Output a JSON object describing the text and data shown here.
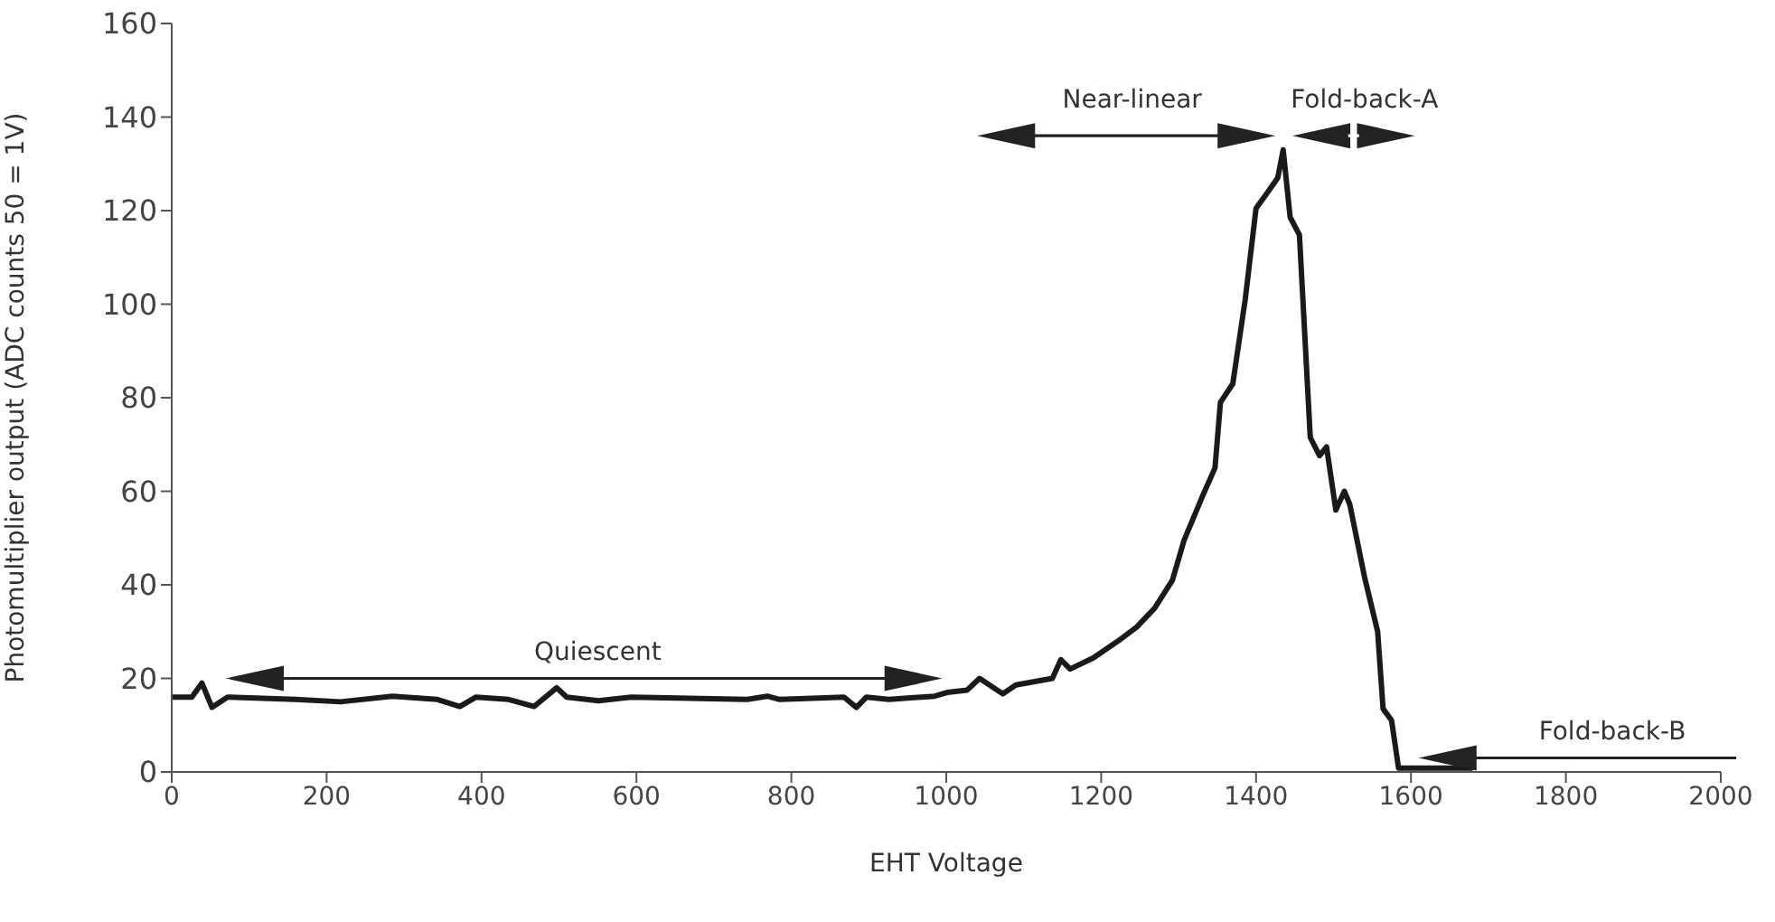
{
  "chart_data": {
    "type": "line",
    "xlabel": "EHT Voltage",
    "ylabel": "Photomultiplier output (ADC counts 50 = 1V)",
    "xlim": [
      0,
      2000
    ],
    "xticks": [
      0,
      200,
      400,
      600,
      800,
      1000,
      1200,
      1400,
      1600,
      1800,
      2000
    ],
    "ylim": [
      0,
      160
    ],
    "yticks": [
      0,
      20,
      40,
      60,
      80,
      100,
      120,
      140,
      160
    ],
    "grid": false,
    "legend": false,
    "marker": "none",
    "line_style": "solid",
    "series": [
      {
        "color": "#1a1a1a",
        "x": [
          1,
          26,
          39,
          52,
          72,
          160,
          218,
          285,
          343,
          372,
          393,
          435,
          468,
          497,
          510,
          551,
          593,
          743,
          769,
          785,
          868,
          884,
          897,
          926,
          985,
          1001,
          1027,
          1043,
          1073,
          1090,
          1137,
          1148,
          1160,
          1190,
          1222,
          1246,
          1269,
          1292,
          1307,
          1331,
          1347,
          1354,
          1370,
          1386,
          1400,
          1417,
          1428,
          1435,
          1444,
          1456,
          1470,
          1482,
          1491,
          1503,
          1514,
          1521,
          1540,
          1557,
          1564,
          1575,
          1584,
          1680
        ],
        "values": [
          16,
          16,
          19,
          13.8,
          16,
          15.5,
          15,
          16.2,
          15.5,
          14,
          16,
          15.5,
          14,
          18,
          16,
          15.2,
          16,
          15.5,
          16.2,
          15.5,
          16,
          13.8,
          16,
          15.5,
          16.2,
          17,
          17.5,
          20,
          16.7,
          18.6,
          20,
          24,
          22,
          24.4,
          28,
          31,
          35,
          41,
          49.5,
          59,
          65,
          79,
          83,
          101,
          120.5,
          124.4,
          127,
          133,
          118.6,
          114.8,
          71.5,
          67.6,
          69.5,
          56,
          60,
          57.2,
          41.7,
          30,
          13.5,
          11,
          0.8,
          0.8
        ]
      }
    ],
    "annotations": [
      "Quiescent",
      "Near-linear",
      "Fold-back-A",
      "Fold-back-B"
    ]
  }
}
